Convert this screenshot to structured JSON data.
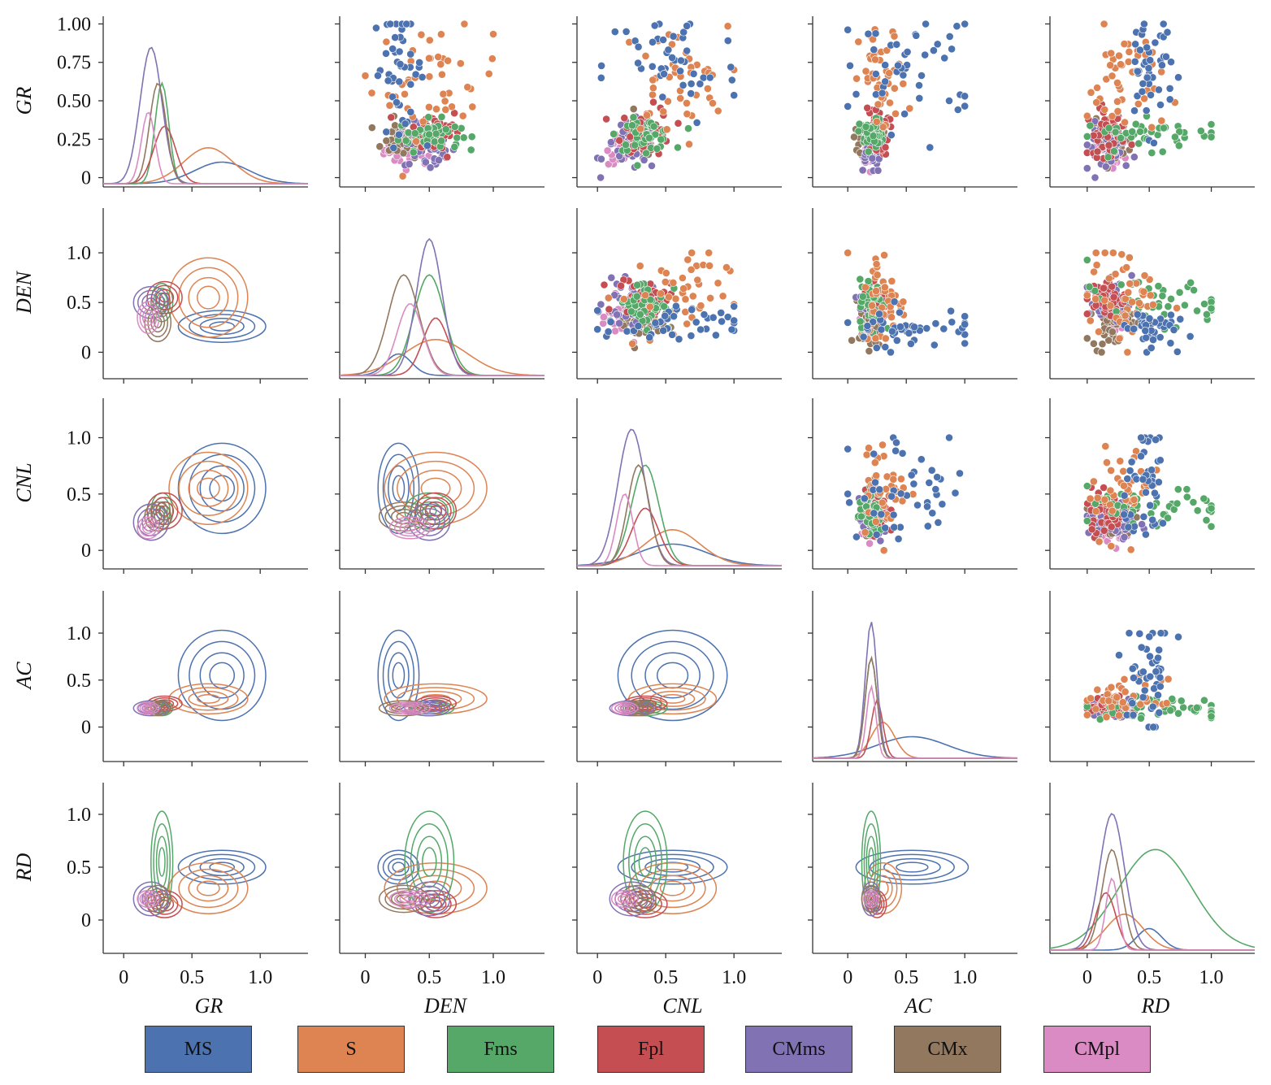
{
  "chart_data": {
    "type": "scatter",
    "variables": [
      "GR",
      "DEN",
      "CNL",
      "AC",
      "RD"
    ],
    "classes": [
      {
        "name": "MS",
        "color": "#4c72b0"
      },
      {
        "name": "S",
        "color": "#dd8452"
      },
      {
        "name": "Fms",
        "color": "#55a868"
      },
      {
        "name": "Fpl",
        "color": "#c44e52"
      },
      {
        "name": "CMms",
        "color": "#8172b3"
      },
      {
        "name": "CMx",
        "color": "#937860"
      },
      {
        "name": "CMpl",
        "color": "#da8bc3"
      }
    ],
    "diagonal": "kde",
    "upper": "scatter",
    "lower": "kde-contour",
    "axes": {
      "GR": {
        "lim": [
          -0.15,
          1.35
        ],
        "ticks": [
          0,
          0.5,
          1.0
        ],
        "tick_labels": [
          "0",
          "0.5",
          "1.0"
        ]
      },
      "DEN": {
        "lim": [
          -0.2,
          1.4
        ],
        "ticks": [
          0,
          0.5,
          1.0
        ],
        "tick_labels": [
          "0",
          "0.5",
          "1.0"
        ]
      },
      "CNL": {
        "lim": [
          -0.15,
          1.35
        ],
        "ticks": [
          0,
          0.5,
          1.0
        ],
        "tick_labels": [
          "0",
          "0.5",
          "1.0"
        ]
      },
      "AC": {
        "lim": [
          -0.3,
          1.45
        ],
        "ticks": [
          0,
          0.5,
          1.0
        ],
        "tick_labels": [
          "0",
          "0.5",
          "1.0"
        ]
      },
      "RD": {
        "lim": [
          -0.3,
          1.35
        ],
        "ticks": [
          0,
          0.5,
          1.0
        ],
        "tick_labels": [
          "0",
          "0.5",
          "1.0"
        ]
      }
    },
    "row_axes": {
      "GR": {
        "lim": [
          -0.05,
          1.05
        ],
        "ticks": [
          0,
          0.25,
          0.5,
          0.75,
          1.0
        ],
        "tick_labels": [
          "0",
          "0.25",
          "0.50",
          "0.75",
          "1.00"
        ]
      },
      "DEN": {
        "lim": [
          -0.25,
          1.45
        ],
        "ticks": [
          0,
          0.5,
          1.0
        ],
        "tick_labels": [
          "0",
          "0.5",
          "1.0"
        ]
      },
      "CNL": {
        "lim": [
          -0.15,
          1.35
        ],
        "ticks": [
          0,
          0.5,
          1.0
        ],
        "tick_labels": [
          "0",
          "0.5",
          "1.0"
        ]
      },
      "AC": {
        "lim": [
          -0.35,
          1.45
        ],
        "ticks": [
          0,
          0.5,
          1.0
        ],
        "tick_labels": [
          "0",
          "0.5",
          "1.0"
        ]
      },
      "RD": {
        "lim": [
          -0.3,
          1.3
        ],
        "ticks": [
          0,
          0.5,
          1.0
        ],
        "tick_labels": [
          "0",
          "0.5",
          "1.0"
        ]
      }
    },
    "clusters": {
      "MS": {
        "mean": {
          "GR": 0.72,
          "DEN": 0.26,
          "CNL": 0.55,
          "AC": 0.55,
          "RD": 0.5
        },
        "sd": {
          "GR": 0.2,
          "DEN": 0.1,
          "CNL": 0.25,
          "AC": 0.3,
          "RD": 0.1
        }
      },
      "S": {
        "mean": {
          "GR": 0.62,
          "DEN": 0.55,
          "CNL": 0.55,
          "AC": 0.3,
          "RD": 0.3
        },
        "sd": {
          "GR": 0.18,
          "DEN": 0.25,
          "CNL": 0.2,
          "AC": 0.1,
          "RD": 0.15
        }
      },
      "Fms": {
        "mean": {
          "GR": 0.28,
          "DEN": 0.5,
          "CNL": 0.35,
          "AC": 0.2,
          "RD": 0.55
        },
        "sd": {
          "GR": 0.05,
          "DEN": 0.12,
          "CNL": 0.1,
          "AC": 0.05,
          "RD": 0.3
        }
      },
      "Fpl": {
        "mean": {
          "GR": 0.3,
          "DEN": 0.55,
          "CNL": 0.35,
          "AC": 0.25,
          "RD": 0.15
        },
        "sd": {
          "GR": 0.08,
          "DEN": 0.1,
          "CNL": 0.1,
          "AC": 0.05,
          "RD": 0.08
        }
      },
      "CMms": {
        "mean": {
          "GR": 0.2,
          "DEN": 0.5,
          "CNL": 0.25,
          "AC": 0.2,
          "RD": 0.2
        },
        "sd": {
          "GR": 0.08,
          "DEN": 0.1,
          "CNL": 0.1,
          "AC": 0.05,
          "RD": 0.1
        }
      },
      "CMx": {
        "mean": {
          "GR": 0.25,
          "DEN": 0.3,
          "CNL": 0.3,
          "AC": 0.2,
          "RD": 0.2
        },
        "sd": {
          "GR": 0.06,
          "DEN": 0.12,
          "CNL": 0.08,
          "AC": 0.05,
          "RD": 0.08
        }
      },
      "CMpl": {
        "mean": {
          "GR": 0.18,
          "DEN": 0.35,
          "CNL": 0.2,
          "AC": 0.2,
          "RD": 0.2
        },
        "sd": {
          "GR": 0.05,
          "DEN": 0.1,
          "CNL": 0.06,
          "AC": 0.04,
          "RD": 0.05
        }
      }
    },
    "legend": [
      "MS",
      "S",
      "Fms",
      "Fpl",
      "CMms",
      "CMx",
      "CMpl"
    ],
    "legend_placement": "bottom",
    "grid": false
  }
}
